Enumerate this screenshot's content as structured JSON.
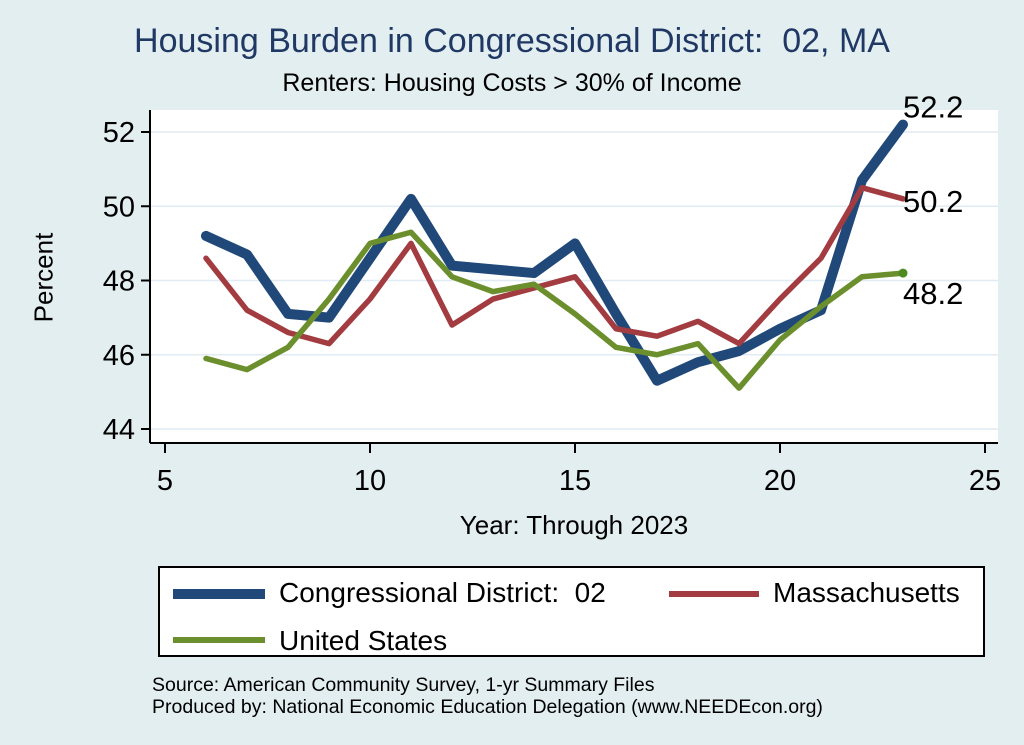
{
  "page": {
    "title": "Housing Burden in Congressional District:  02, MA",
    "subtitle": "Renters: Housing Costs > 30% of Income",
    "source_line1": "Source: American Community Survey, 1-yr Summary Files",
    "source_line2": "Produced by: National Economic Education Delegation (www.NEEDEcon.org)"
  },
  "colors": {
    "background": "#e3eef1",
    "plot_background": "#ffffff",
    "gridline": "#e0ebf3",
    "axis": "#000000",
    "title_text": "#203864",
    "district_line": "#20497a",
    "massachusetts_line": "#a23c41",
    "united_states_line": "#6c8f2e",
    "end_marker": "#4e8a20"
  },
  "chart_data": {
    "type": "line",
    "title": "Housing Burden in Congressional District:  02, MA",
    "subtitle": "Renters: Housing Costs > 30% of Income",
    "xlabel": "Year: Through 2023",
    "ylabel": "Percent",
    "x": [
      6,
      7,
      8,
      9,
      10,
      11,
      12,
      13,
      14,
      15,
      16,
      17,
      18,
      19,
      20,
      21,
      22,
      23
    ],
    "x_meaning": "Year: 6 = 2006 ... 23 = 2023",
    "xticks": [
      5,
      10,
      15,
      20,
      25
    ],
    "yticks": [
      44,
      46,
      48,
      50,
      52
    ],
    "xlim": [
      5,
      25
    ],
    "ylim": [
      44,
      52
    ],
    "grid": "horizontal",
    "legend_position": "bottom",
    "series": [
      {
        "name": "Congressional District:  02",
        "color": "#20497a",
        "width": 10,
        "end_label": "52.2",
        "end_marker": false,
        "values": [
          49.2,
          48.7,
          47.1,
          47.0,
          48.6,
          50.2,
          48.4,
          48.3,
          48.2,
          49.0,
          47.1,
          45.3,
          45.8,
          46.1,
          46.7,
          47.2,
          50.7,
          52.2
        ]
      },
      {
        "name": "Massachusetts",
        "color": "#a23c41",
        "width": 5.5,
        "end_label": "50.2",
        "end_marker": false,
        "values": [
          48.6,
          47.2,
          46.6,
          46.3,
          47.5,
          49.0,
          46.8,
          47.5,
          47.8,
          48.1,
          46.7,
          46.5,
          46.9,
          46.3,
          47.5,
          48.6,
          50.5,
          50.2
        ]
      },
      {
        "name": "United States",
        "color": "#6c8f2e",
        "width": 5.5,
        "end_label": "48.2",
        "end_marker": true,
        "values": [
          45.9,
          45.6,
          46.2,
          47.5,
          49.0,
          49.3,
          48.1,
          47.7,
          47.9,
          47.1,
          46.2,
          46.0,
          46.3,
          45.1,
          46.4,
          47.3,
          48.1,
          48.2
        ]
      }
    ]
  }
}
